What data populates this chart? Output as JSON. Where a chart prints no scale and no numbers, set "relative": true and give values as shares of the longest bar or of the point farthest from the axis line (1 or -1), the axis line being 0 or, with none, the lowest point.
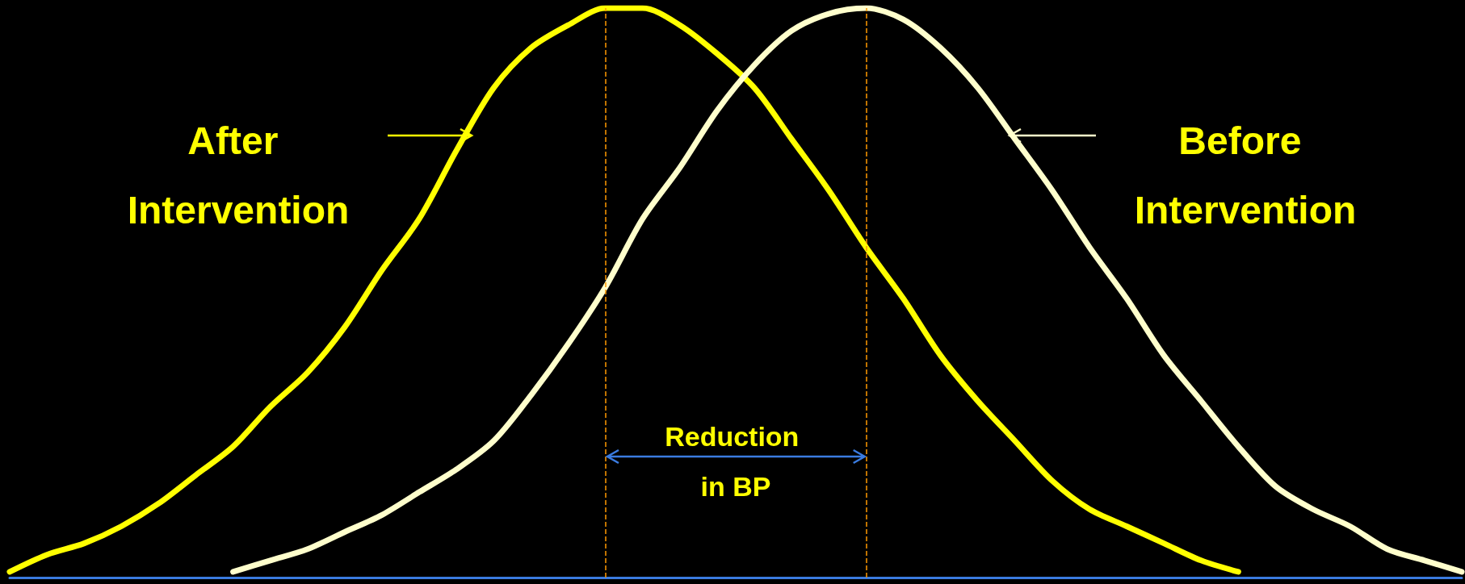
{
  "chart_data": {
    "type": "line",
    "relative": true,
    "categories": [
      null,
      null,
      null,
      null,
      null,
      null,
      null,
      null,
      null,
      null,
      null,
      null,
      null,
      null,
      null,
      null,
      null,
      null,
      null,
      null,
      null,
      null,
      null,
      null,
      null,
      null,
      null,
      null,
      null,
      null,
      null,
      null,
      null,
      null,
      null,
      null,
      null,
      null,
      null,
      null
    ],
    "series": [
      {
        "name": "After Intervention",
        "color": "#ffff00",
        "values": [
          0.01,
          0.04,
          0.06,
          0.09,
          0.13,
          0.18,
          0.23,
          0.3,
          0.36,
          0.44,
          0.54,
          0.63,
          0.75,
          0.86,
          0.93,
          0.97,
          1,
          1,
          0.97,
          0.92,
          0.86,
          0.77,
          0.68,
          0.58,
          0.49,
          0.39,
          0.31,
          0.24,
          0.17,
          0.12,
          0.09,
          0.06,
          0.03,
          0.01,
          null,
          null,
          null,
          null,
          null,
          null
        ]
      },
      {
        "name": "Before Intervention",
        "color": "#ffffcc",
        "values": [
          null,
          null,
          null,
          null,
          null,
          null,
          0.01,
          0.03,
          0.05,
          0.08,
          0.11,
          0.15,
          0.19,
          0.24,
          0.32,
          0.41,
          0.51,
          0.63,
          0.72,
          0.82,
          0.9,
          0.96,
          0.99,
          1,
          0.98,
          0.93,
          0.86,
          0.77,
          0.68,
          0.58,
          0.49,
          0.39,
          0.31,
          0.23,
          0.16,
          0.12,
          0.09,
          0.05,
          0.03,
          0.01
        ]
      }
    ],
    "annotations": [
      "Reduction in BP"
    ],
    "grid": false,
    "marker": "none",
    "line_style": "solid"
  }
}
